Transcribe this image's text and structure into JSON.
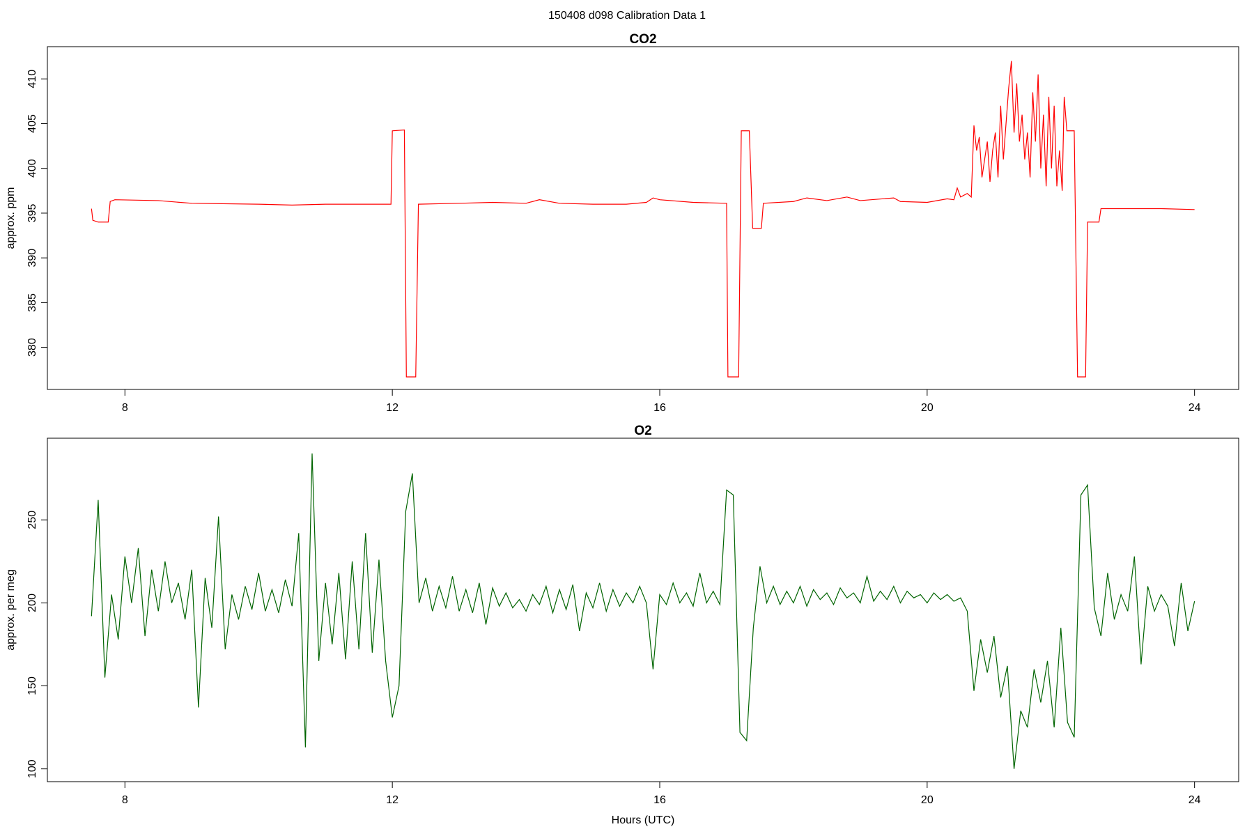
{
  "title": "150408   d098   Calibration Data 1",
  "chart_data": [
    {
      "type": "line",
      "title": "CO2",
      "ylabel": "approx. ppm",
      "x": [
        7.5,
        7.52,
        7.6,
        7.75,
        7.78,
        7.85,
        8.5,
        9.0,
        10.0,
        10.5,
        11.0,
        11.98,
        12.0,
        12.18,
        12.21,
        12.35,
        12.39,
        13.0,
        13.5,
        14.0,
        14.2,
        14.5,
        15.0,
        15.5,
        15.8,
        15.9,
        16.0,
        16.5,
        17.0,
        17.02,
        17.18,
        17.22,
        17.34,
        17.39,
        17.52,
        17.55,
        18.0,
        18.2,
        18.5,
        18.8,
        19.0,
        19.5,
        19.6,
        20.0,
        20.3,
        20.4,
        20.45,
        20.5,
        20.6,
        20.66,
        20.7,
        20.74,
        20.78,
        20.82,
        20.86,
        20.9,
        20.94,
        20.98,
        21.02,
        21.06,
        21.1,
        21.14,
        21.18,
        21.22,
        21.26,
        21.3,
        21.34,
        21.38,
        21.42,
        21.46,
        21.5,
        21.54,
        21.58,
        21.62,
        21.66,
        21.7,
        21.74,
        21.78,
        21.82,
        21.86,
        21.9,
        21.94,
        21.98,
        22.02,
        22.05,
        22.09,
        22.2,
        22.25,
        22.37,
        22.4,
        22.57,
        22.6,
        23.5,
        24.0
      ],
      "series": [
        {
          "color": "#ff0000",
          "values": [
            395.5,
            394.2,
            394.0,
            394.0,
            396.3,
            396.5,
            396.4,
            396.1,
            396.0,
            395.9,
            396.0,
            396.0,
            404.2,
            404.3,
            376.7,
            376.7,
            396.0,
            396.1,
            396.2,
            396.1,
            396.5,
            396.1,
            396.0,
            396.0,
            396.2,
            396.7,
            396.5,
            396.2,
            396.1,
            376.7,
            376.7,
            404.2,
            404.2,
            393.3,
            393.3,
            396.1,
            396.3,
            396.7,
            396.4,
            396.8,
            396.4,
            396.7,
            396.3,
            396.2,
            396.6,
            396.5,
            397.8,
            396.8,
            397.2,
            396.8,
            404.8,
            402,
            403.5,
            399,
            401,
            403,
            398.5,
            402,
            404,
            399,
            407,
            401,
            405,
            409,
            412,
            404,
            409.5,
            403,
            406,
            401,
            404,
            399,
            408.5,
            403,
            410.5,
            400,
            406,
            398,
            408,
            400,
            407,
            398,
            402,
            397.5,
            408,
            404.2,
            404.2,
            376.7,
            376.7,
            394,
            394,
            395.5,
            395.5,
            395.4
          ]
        }
      ],
      "xlim": [
        6.84,
        24.66
      ],
      "xticks": [
        8,
        12,
        16,
        20,
        24
      ],
      "ylim": [
        375.3,
        413.6
      ],
      "yticks": [
        380,
        385,
        390,
        395,
        400,
        405,
        410
      ]
    },
    {
      "type": "line",
      "title": "O2",
      "ylabel": "approx. per meg",
      "xlabel": "Hours (UTC)",
      "x": [
        7.5,
        7.6,
        7.7,
        7.8,
        7.9,
        8.0,
        8.1,
        8.2,
        8.3,
        8.4,
        8.5,
        8.6,
        8.7,
        8.8,
        8.9,
        9.0,
        9.1,
        9.2,
        9.3,
        9.4,
        9.5,
        9.6,
        9.7,
        9.8,
        9.9,
        10.0,
        10.1,
        10.2,
        10.3,
        10.4,
        10.5,
        10.6,
        10.7,
        10.8,
        10.9,
        11.0,
        11.1,
        11.2,
        11.3,
        11.4,
        11.5,
        11.6,
        11.7,
        11.8,
        11.9,
        12.0,
        12.1,
        12.2,
        12.3,
        12.4,
        12.5,
        12.6,
        12.7,
        12.8,
        12.9,
        13.0,
        13.1,
        13.2,
        13.3,
        13.4,
        13.5,
        13.6,
        13.7,
        13.8,
        13.9,
        14.0,
        14.1,
        14.2,
        14.3,
        14.4,
        14.5,
        14.6,
        14.7,
        14.8,
        14.9,
        15.0,
        15.1,
        15.2,
        15.3,
        15.4,
        15.5,
        15.6,
        15.7,
        15.8,
        15.9,
        16.0,
        16.1,
        16.2,
        16.3,
        16.4,
        16.5,
        16.6,
        16.7,
        16.8,
        16.9,
        17.0,
        17.1,
        17.2,
        17.3,
        17.4,
        17.5,
        17.6,
        17.7,
        17.8,
        17.9,
        18.0,
        18.1,
        18.2,
        18.3,
        18.4,
        18.5,
        18.6,
        18.7,
        18.8,
        18.9,
        19.0,
        19.1,
        19.2,
        19.3,
        19.4,
        19.5,
        19.6,
        19.7,
        19.8,
        19.9,
        20.0,
        20.1,
        20.2,
        20.3,
        20.4,
        20.5,
        20.6,
        20.7,
        20.8,
        20.9,
        21.0,
        21.1,
        21.2,
        21.3,
        21.4,
        21.5,
        21.6,
        21.7,
        21.8,
        21.9,
        22.0,
        22.1,
        22.2,
        22.3,
        22.4,
        22.5,
        22.6,
        22.7,
        22.8,
        22.9,
        23.0,
        23.1,
        23.2,
        23.3,
        23.4,
        23.5,
        23.6,
        23.7,
        23.8,
        23.9,
        24.0
      ],
      "series": [
        {
          "color": "#006400",
          "values": [
            192,
            262,
            155,
            205,
            178,
            228,
            200,
            233,
            180,
            220,
            195,
            225,
            200,
            212,
            190,
            220,
            137,
            215,
            185,
            252,
            172,
            205,
            190,
            210,
            196,
            218,
            195,
            208,
            194,
            214,
            198,
            242,
            113,
            290,
            165,
            212,
            175,
            218,
            166,
            225,
            172,
            242,
            170,
            226,
            165,
            131,
            150,
            255,
            278,
            200,
            215,
            195,
            210,
            197,
            216,
            195,
            208,
            194,
            212,
            187,
            209,
            198,
            206,
            197,
            202,
            195,
            205,
            199,
            210,
            194,
            208,
            196,
            211,
            183,
            206,
            197,
            212,
            195,
            208,
            198,
            206,
            200,
            210,
            200,
            160,
            205,
            199,
            212,
            200,
            206,
            198,
            218,
            200,
            207,
            199,
            268,
            265,
            122,
            117,
            185,
            222,
            200,
            210,
            199,
            207,
            200,
            210,
            198,
            208,
            202,
            206,
            199,
            209,
            203,
            206,
            200,
            216,
            201,
            207,
            202,
            210,
            200,
            207,
            203,
            205,
            200,
            206,
            202,
            205,
            201,
            203,
            195,
            147,
            178,
            158,
            180,
            143,
            162,
            100,
            135,
            125,
            160,
            140,
            165,
            125,
            185,
            128,
            119,
            265,
            271,
            197,
            180,
            218,
            190,
            205,
            195,
            228,
            163,
            210,
            195,
            205,
            198,
            174,
            212,
            183,
            201
          ]
        }
      ],
      "xlim": [
        6.84,
        24.66
      ],
      "xticks": [
        8,
        12,
        16,
        20,
        24
      ],
      "ylim": [
        92.3,
        299.2
      ],
      "yticks": [
        100,
        150,
        200,
        250
      ]
    }
  ]
}
